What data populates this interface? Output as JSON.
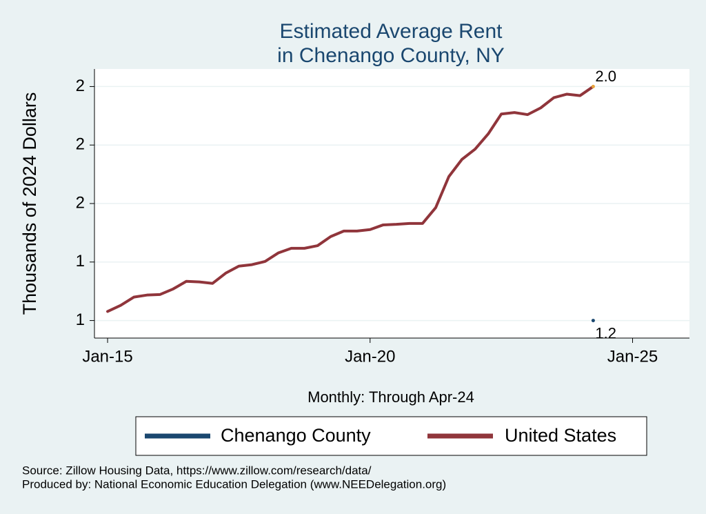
{
  "chart_data": {
    "type": "line",
    "title": [
      "Estimated Average Rent",
      "in Chenango County, NY"
    ],
    "y_label": "Thousands of 2024 Dollars",
    "x_label": "Monthly: Through Apr-24",
    "notes": [
      "Source: Zillow Housing Data, https://www.zillow.com/research/data/",
      "Produced by: National Economic Education Delegation (www.NEEDelegation.org)"
    ],
    "x": [
      "2015-01",
      "2015-04",
      "2015-07",
      "2015-10",
      "2016-01",
      "2016-04",
      "2016-07",
      "2016-10",
      "2017-01",
      "2017-04",
      "2017-07",
      "2017-10",
      "2018-01",
      "2018-04",
      "2018-07",
      "2018-10",
      "2019-01",
      "2019-04",
      "2019-07",
      "2019-10",
      "2020-01",
      "2020-04",
      "2020-07",
      "2020-10",
      "2021-01",
      "2021-04",
      "2021-07",
      "2021-10",
      "2022-01",
      "2022-04",
      "2022-07",
      "2022-10",
      "2023-01",
      "2023-04",
      "2023-07",
      "2023-10",
      "2024-01",
      "2024-04"
    ],
    "series": [
      {
        "name": "Chenango County",
        "color": "#1a476f",
        "values": [
          null,
          null,
          null,
          null,
          null,
          null,
          null,
          null,
          null,
          null,
          null,
          null,
          null,
          null,
          null,
          null,
          null,
          null,
          null,
          null,
          null,
          null,
          null,
          null,
          null,
          null,
          null,
          null,
          null,
          null,
          null,
          null,
          null,
          null,
          null,
          null,
          null,
          1.2
        ]
      },
      {
        "name": "United States",
        "color": "#90353b",
        "values": [
          1.231,
          1.252,
          1.28,
          1.287,
          1.289,
          1.308,
          1.334,
          1.332,
          1.327,
          1.362,
          1.386,
          1.391,
          1.402,
          1.431,
          1.447,
          1.447,
          1.456,
          1.487,
          1.506,
          1.506,
          1.511,
          1.527,
          1.529,
          1.532,
          1.532,
          1.586,
          1.692,
          1.751,
          1.786,
          1.838,
          1.906,
          1.911,
          1.904,
          1.927,
          1.962,
          1.974,
          1.969,
          2.0
        ],
        "value_labels": [
          null,
          null,
          null,
          null,
          null,
          null,
          null,
          null,
          null,
          null,
          null,
          null,
          null,
          null,
          null,
          null,
          null,
          null,
          null,
          null,
          null,
          null,
          null,
          null,
          null,
          null,
          null,
          null,
          null,
          null,
          null,
          null,
          null,
          null,
          null,
          null,
          null,
          "2.0"
        ]
      }
    ],
    "xlim": [
      "2014-10",
      "2026-02"
    ],
    "xticks": [
      {
        "value": "2015-01",
        "label": "Jan-15"
      },
      {
        "value": "2020-01",
        "label": "Jan-20"
      },
      {
        "value": "2025-01",
        "label": "Jan-25"
      }
    ],
    "ylim": [
      1.14,
      2.06
    ],
    "yticks": [
      {
        "value": 1.2,
        "label": "1"
      },
      {
        "value": 1.4,
        "label": "1"
      },
      {
        "value": 1.6,
        "label": "2"
      },
      {
        "value": 1.8,
        "label": "2"
      },
      {
        "value": 2.0,
        "label": "2"
      }
    ],
    "grid": true
  }
}
